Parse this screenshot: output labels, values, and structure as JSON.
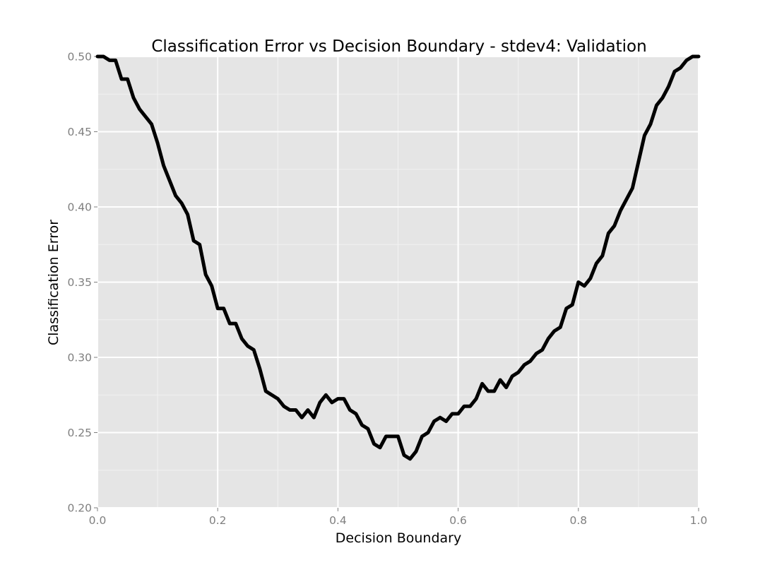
{
  "chart_data": {
    "type": "line",
    "title": "Classification Error vs Decision Boundary - stdev4: Validation",
    "xlabel": "Decision Boundary",
    "ylabel": "Classification Error",
    "xlim": [
      0.0,
      1.0
    ],
    "ylim": [
      0.2,
      0.5
    ],
    "x_ticks": [
      "0.0",
      "0.2",
      "0.4",
      "0.6",
      "0.8",
      "1.0"
    ],
    "y_ticks": [
      "0.20",
      "0.25",
      "0.30",
      "0.35",
      "0.40",
      "0.45",
      "0.50"
    ],
    "grid": true,
    "legend": "none",
    "colors": {
      "panel_background": "#e5e5e5",
      "grid_major": "#ffffff",
      "grid_minor": "#f2f2f2",
      "line": "#000000",
      "tick_text": "#7f7f7f"
    },
    "series": [
      {
        "x": [
          0.0,
          0.01,
          0.02,
          0.03,
          0.04,
          0.05,
          0.06,
          0.07,
          0.08,
          0.09,
          0.1,
          0.11,
          0.12,
          0.13,
          0.14,
          0.15,
          0.16,
          0.17,
          0.18,
          0.19,
          0.2,
          0.21,
          0.22,
          0.23,
          0.24,
          0.25,
          0.26,
          0.27,
          0.28,
          0.29,
          0.3,
          0.31,
          0.32,
          0.33,
          0.34,
          0.35,
          0.36,
          0.37,
          0.38,
          0.39,
          0.4,
          0.41,
          0.42,
          0.43,
          0.44,
          0.45,
          0.46,
          0.47,
          0.48,
          0.49,
          0.5,
          0.51,
          0.52,
          0.53,
          0.54,
          0.55,
          0.56,
          0.57,
          0.58,
          0.59,
          0.6,
          0.61,
          0.62,
          0.63,
          0.64,
          0.65,
          0.66,
          0.67,
          0.68,
          0.69,
          0.7,
          0.71,
          0.72,
          0.73,
          0.74,
          0.75,
          0.76,
          0.77,
          0.78,
          0.79,
          0.8,
          0.81,
          0.82,
          0.83,
          0.84,
          0.85,
          0.86,
          0.87,
          0.88,
          0.89,
          0.9,
          0.91,
          0.92,
          0.93,
          0.94,
          0.95,
          0.96,
          0.97,
          0.98,
          0.99,
          1.0
        ],
        "y": [
          0.5,
          0.5,
          0.4975,
          0.4975,
          0.485,
          0.485,
          0.4725,
          0.465,
          0.46,
          0.455,
          0.4425,
          0.4275,
          0.4175,
          0.4075,
          0.4025,
          0.395,
          0.3775,
          0.375,
          0.355,
          0.3475,
          0.3325,
          0.3325,
          0.3225,
          0.3225,
          0.3125,
          0.3075,
          0.305,
          0.2925,
          0.2775,
          0.275,
          0.2725,
          0.2675,
          0.265,
          0.265,
          0.26,
          0.265,
          0.26,
          0.27,
          0.275,
          0.27,
          0.2725,
          0.2725,
          0.265,
          0.2625,
          0.255,
          0.2525,
          0.2425,
          0.24,
          0.2475,
          0.2475,
          0.2475,
          0.235,
          0.2325,
          0.2375,
          0.2475,
          0.25,
          0.2575,
          0.26,
          0.2575,
          0.2625,
          0.2625,
          0.2675,
          0.2675,
          0.2725,
          0.2825,
          0.2775,
          0.2775,
          0.285,
          0.28,
          0.2875,
          0.29,
          0.295,
          0.2975,
          0.3025,
          0.305,
          0.3125,
          0.3175,
          0.32,
          0.3325,
          0.335,
          0.35,
          0.3475,
          0.3525,
          0.3625,
          0.3675,
          0.3825,
          0.3875,
          0.3975,
          0.405,
          0.4125,
          0.43,
          0.4475,
          0.455,
          0.4675,
          0.4725,
          0.48,
          0.49,
          0.4925,
          0.4975,
          0.5,
          0.5
        ]
      }
    ]
  }
}
